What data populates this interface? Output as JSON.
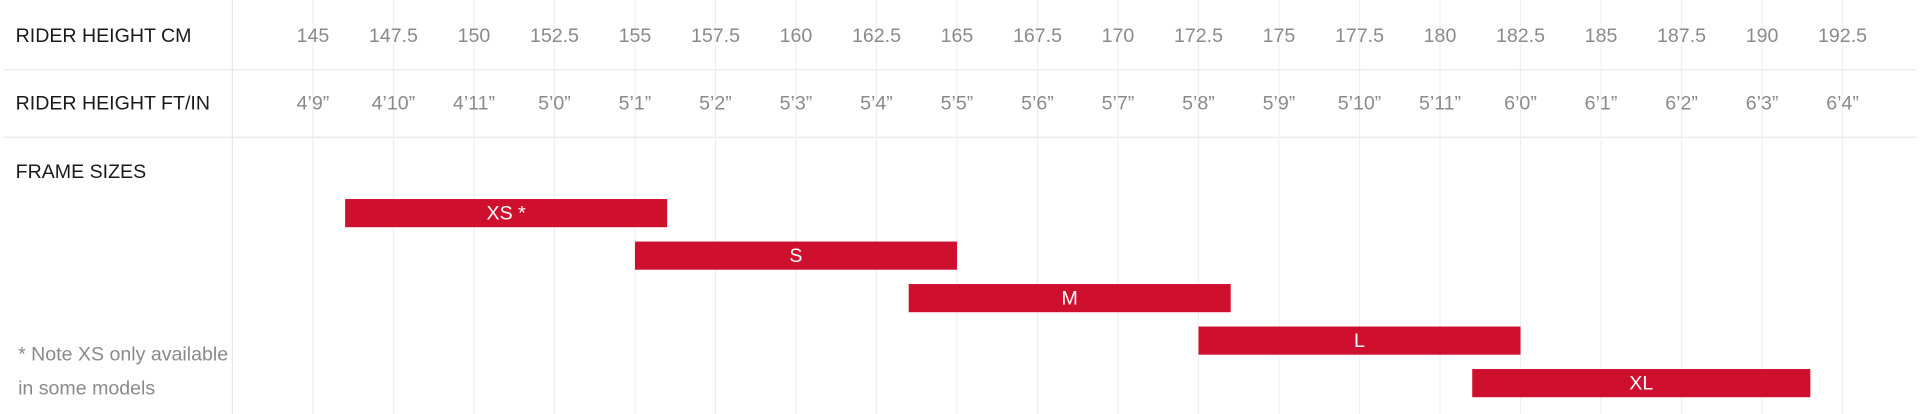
{
  "chart_data": {
    "type": "range",
    "row_labels": [
      "RIDER HEIGHT CM",
      "RIDER HEIGHT FT/IN",
      "FRAME SIZES"
    ],
    "note": [
      "* Note XS only available",
      "in some models"
    ],
    "categories": [
      "XS *",
      "S",
      "M",
      "L",
      "XL"
    ],
    "values": [
      [
        146,
        156
      ],
      [
        155,
        165
      ],
      [
        163.5,
        173.5
      ],
      [
        172.5,
        182.5
      ],
      [
        181,
        191.5
      ]
    ],
    "color": "#cf0f2e",
    "xlim": [
      142.5,
      194.8
    ],
    "xticks": [
      145,
      147.5,
      150,
      152.5,
      155,
      157.5,
      160,
      162.5,
      165,
      167.5,
      170,
      172.5,
      175,
      177.5,
      180,
      182.5,
      185,
      187.5,
      190,
      192.5
    ],
    "xticks2": [
      {
        "value": 145,
        "label": "4’9”"
      },
      {
        "value": 147.5,
        "label": "4’10”"
      },
      {
        "value": 150,
        "label": "4’11”"
      },
      {
        "value": 152.5,
        "label": "5’0”"
      },
      {
        "value": 155,
        "label": "5’1”"
      },
      {
        "value": 157.5,
        "label": "5’2”"
      },
      {
        "value": 160,
        "label": "5’3”"
      },
      {
        "value": 162.5,
        "label": "5’4”"
      },
      {
        "value": 165,
        "label": "5’5”"
      },
      {
        "value": 167.5,
        "label": "5’6”"
      },
      {
        "value": 170,
        "label": "5’7”"
      },
      {
        "value": 172.5,
        "label": "5’8”"
      },
      {
        "value": 175,
        "label": "5’9”"
      },
      {
        "value": 177.5,
        "label": "5’10”"
      },
      {
        "value": 180,
        "label": "5’11”"
      },
      {
        "value": 182.5,
        "label": "6’0”"
      },
      {
        "value": 185,
        "label": "6’1”"
      },
      {
        "value": 187.5,
        "label": "6’2”"
      },
      {
        "value": 190,
        "label": "6’3”"
      },
      {
        "value": 192.5,
        "label": "6’4”"
      }
    ],
    "grid": true
  }
}
